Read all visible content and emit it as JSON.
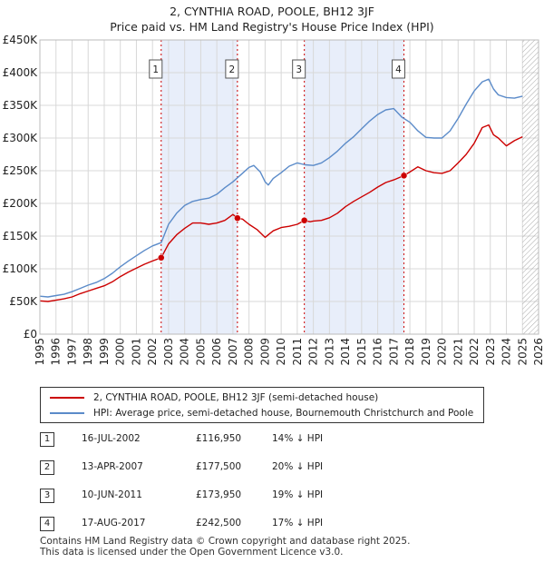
{
  "title": {
    "line1": "2, CYNTHIA ROAD, POOLE, BH12 3JF",
    "line2": "Price paid vs. HM Land Registry's House Price Index (HPI)"
  },
  "colors": {
    "property": "#cc0000",
    "hpi": "#5b8bc9",
    "shade": "#e8eefa",
    "grid": "#d8d8d8",
    "marker_line": "#cc0000"
  },
  "chart_data": {
    "type": "line",
    "xlim": [
      1995,
      2026
    ],
    "ylim": [
      0,
      450000
    ],
    "x_ticks": [
      "1995",
      "1996",
      "1997",
      "1998",
      "1999",
      "2000",
      "2001",
      "2002",
      "2003",
      "2004",
      "2005",
      "2006",
      "2007",
      "2008",
      "2009",
      "2010",
      "2011",
      "2012",
      "2013",
      "2014",
      "2015",
      "2016",
      "2017",
      "2018",
      "2019",
      "2020",
      "2021",
      "2022",
      "2023",
      "2024",
      "2025",
      "2026"
    ],
    "y_ticks": [
      {
        "value": 0,
        "label": "£0"
      },
      {
        "value": 50000,
        "label": "£50K"
      },
      {
        "value": 100000,
        "label": "£100K"
      },
      {
        "value": 150000,
        "label": "£150K"
      },
      {
        "value": 200000,
        "label": "£200K"
      },
      {
        "value": 250000,
        "label": "£250K"
      },
      {
        "value": 300000,
        "label": "£300K"
      },
      {
        "value": 350000,
        "label": "£350K"
      },
      {
        "value": 400000,
        "label": "£400K"
      },
      {
        "value": 450000,
        "label": "£450K"
      }
    ],
    "shaded_ranges": [
      [
        2002.54,
        2007.28
      ],
      [
        2011.44,
        2017.63
      ]
    ],
    "future_hatch_from": 2025.0,
    "series": [
      {
        "name": "2, CYNTHIA ROAD, POOLE, BH12 3JF (semi-detached house)",
        "color": "#cc0000",
        "x": [
          1995.0,
          1995.5,
          1996.0,
          1996.5,
          1997.0,
          1997.5,
          1998.0,
          1998.5,
          1999.0,
          1999.5,
          2000.0,
          2000.5,
          2001.0,
          2001.5,
          2002.0,
          2002.54,
          2003.0,
          2003.5,
          2004.0,
          2004.5,
          2005.0,
          2005.5,
          2006.0,
          2006.5,
          2007.0,
          2007.28,
          2007.6,
          2008.0,
          2008.5,
          2009.0,
          2009.2,
          2009.5,
          2010.0,
          2010.5,
          2011.0,
          2011.44,
          2011.8,
          2012.0,
          2012.5,
          2013.0,
          2013.5,
          2014.0,
          2014.5,
          2015.0,
          2015.5,
          2016.0,
          2016.5,
          2017.0,
          2017.63,
          2018.0,
          2018.5,
          2019.0,
          2019.5,
          2020.0,
          2020.5,
          2021.0,
          2021.5,
          2022.0,
          2022.5,
          2022.9,
          2023.2,
          2023.5,
          2024.0,
          2024.5,
          2025.0
        ],
        "values": [
          51000,
          50000,
          52000,
          54000,
          57000,
          62000,
          66000,
          70000,
          74000,
          80000,
          88000,
          95000,
          101000,
          107000,
          112000,
          116950,
          138000,
          152000,
          162000,
          170000,
          170000,
          168000,
          170000,
          174000,
          183000,
          177500,
          176000,
          168000,
          160000,
          148000,
          152000,
          158000,
          163000,
          165000,
          168000,
          173950,
          172000,
          173000,
          174000,
          178000,
          185000,
          195000,
          203000,
          210000,
          217000,
          225000,
          232000,
          236000,
          242500,
          248000,
          256000,
          250000,
          247000,
          246000,
          250000,
          262000,
          275000,
          292000,
          316000,
          320000,
          305000,
          300000,
          288000,
          296000,
          302000
        ]
      },
      {
        "name": "HPI: Average price, semi-detached house, Bournemouth Christchurch and Poole",
        "color": "#5b8bc9",
        "x": [
          1995.0,
          1995.5,
          1996.0,
          1996.5,
          1997.0,
          1997.5,
          1998.0,
          1998.5,
          1999.0,
          1999.5,
          2000.0,
          2000.5,
          2001.0,
          2001.5,
          2002.0,
          2002.54,
          2003.0,
          2003.5,
          2004.0,
          2004.5,
          2005.0,
          2005.5,
          2006.0,
          2006.5,
          2007.0,
          2007.5,
          2008.0,
          2008.3,
          2008.7,
          2009.0,
          2009.2,
          2009.5,
          2010.0,
          2010.5,
          2011.0,
          2011.5,
          2012.0,
          2012.5,
          2013.0,
          2013.5,
          2014.0,
          2014.5,
          2015.0,
          2015.5,
          2016.0,
          2016.5,
          2017.0,
          2017.5,
          2018.0,
          2018.5,
          2019.0,
          2019.5,
          2020.0,
          2020.5,
          2021.0,
          2021.5,
          2022.0,
          2022.5,
          2022.9,
          2023.2,
          2023.5,
          2024.0,
          2024.5,
          2025.0
        ],
        "values": [
          58000,
          57000,
          59000,
          61000,
          65000,
          70000,
          75000,
          79000,
          85000,
          93000,
          103000,
          112000,
          120000,
          128000,
          135000,
          140000,
          168000,
          185000,
          197000,
          203000,
          206000,
          208000,
          214000,
          224000,
          233000,
          244000,
          255000,
          258000,
          248000,
          233000,
          228000,
          238000,
          247000,
          257000,
          262000,
          259000,
          258000,
          262000,
          270000,
          280000,
          292000,
          302000,
          314000,
          326000,
          336000,
          343000,
          345000,
          332000,
          324000,
          311000,
          301000,
          300000,
          300000,
          311000,
          330000,
          352000,
          372000,
          386000,
          390000,
          375000,
          366000,
          362000,
          361000,
          364000
        ]
      }
    ],
    "markers": [
      {
        "label": "1",
        "x": 2002.54,
        "value": 116950
      },
      {
        "label": "2",
        "x": 2007.28,
        "value": 177500
      },
      {
        "label": "3",
        "x": 2011.44,
        "value": 173950
      },
      {
        "label": "4",
        "x": 2017.63,
        "value": 242500
      }
    ]
  },
  "legend": {
    "property_label": "2, CYNTHIA ROAD, POOLE, BH12 3JF (semi-detached house)",
    "hpi_label": "HPI: Average price, semi-detached house, Bournemouth Christchurch and Poole"
  },
  "transactions": [
    {
      "num": "1",
      "date": "16-JUL-2002",
      "price": "£116,950",
      "hpi": "14% ↓ HPI"
    },
    {
      "num": "2",
      "date": "13-APR-2007",
      "price": "£177,500",
      "hpi": "20% ↓ HPI"
    },
    {
      "num": "3",
      "date": "10-JUN-2011",
      "price": "£173,950",
      "hpi": "19% ↓ HPI"
    },
    {
      "num": "4",
      "date": "17-AUG-2017",
      "price": "£242,500",
      "hpi": "17% ↓ HPI"
    }
  ],
  "footer": {
    "line1": "Contains HM Land Registry data © Crown copyright and database right 2025.",
    "line2": "This data is licensed under the Open Government Licence v3.0."
  }
}
